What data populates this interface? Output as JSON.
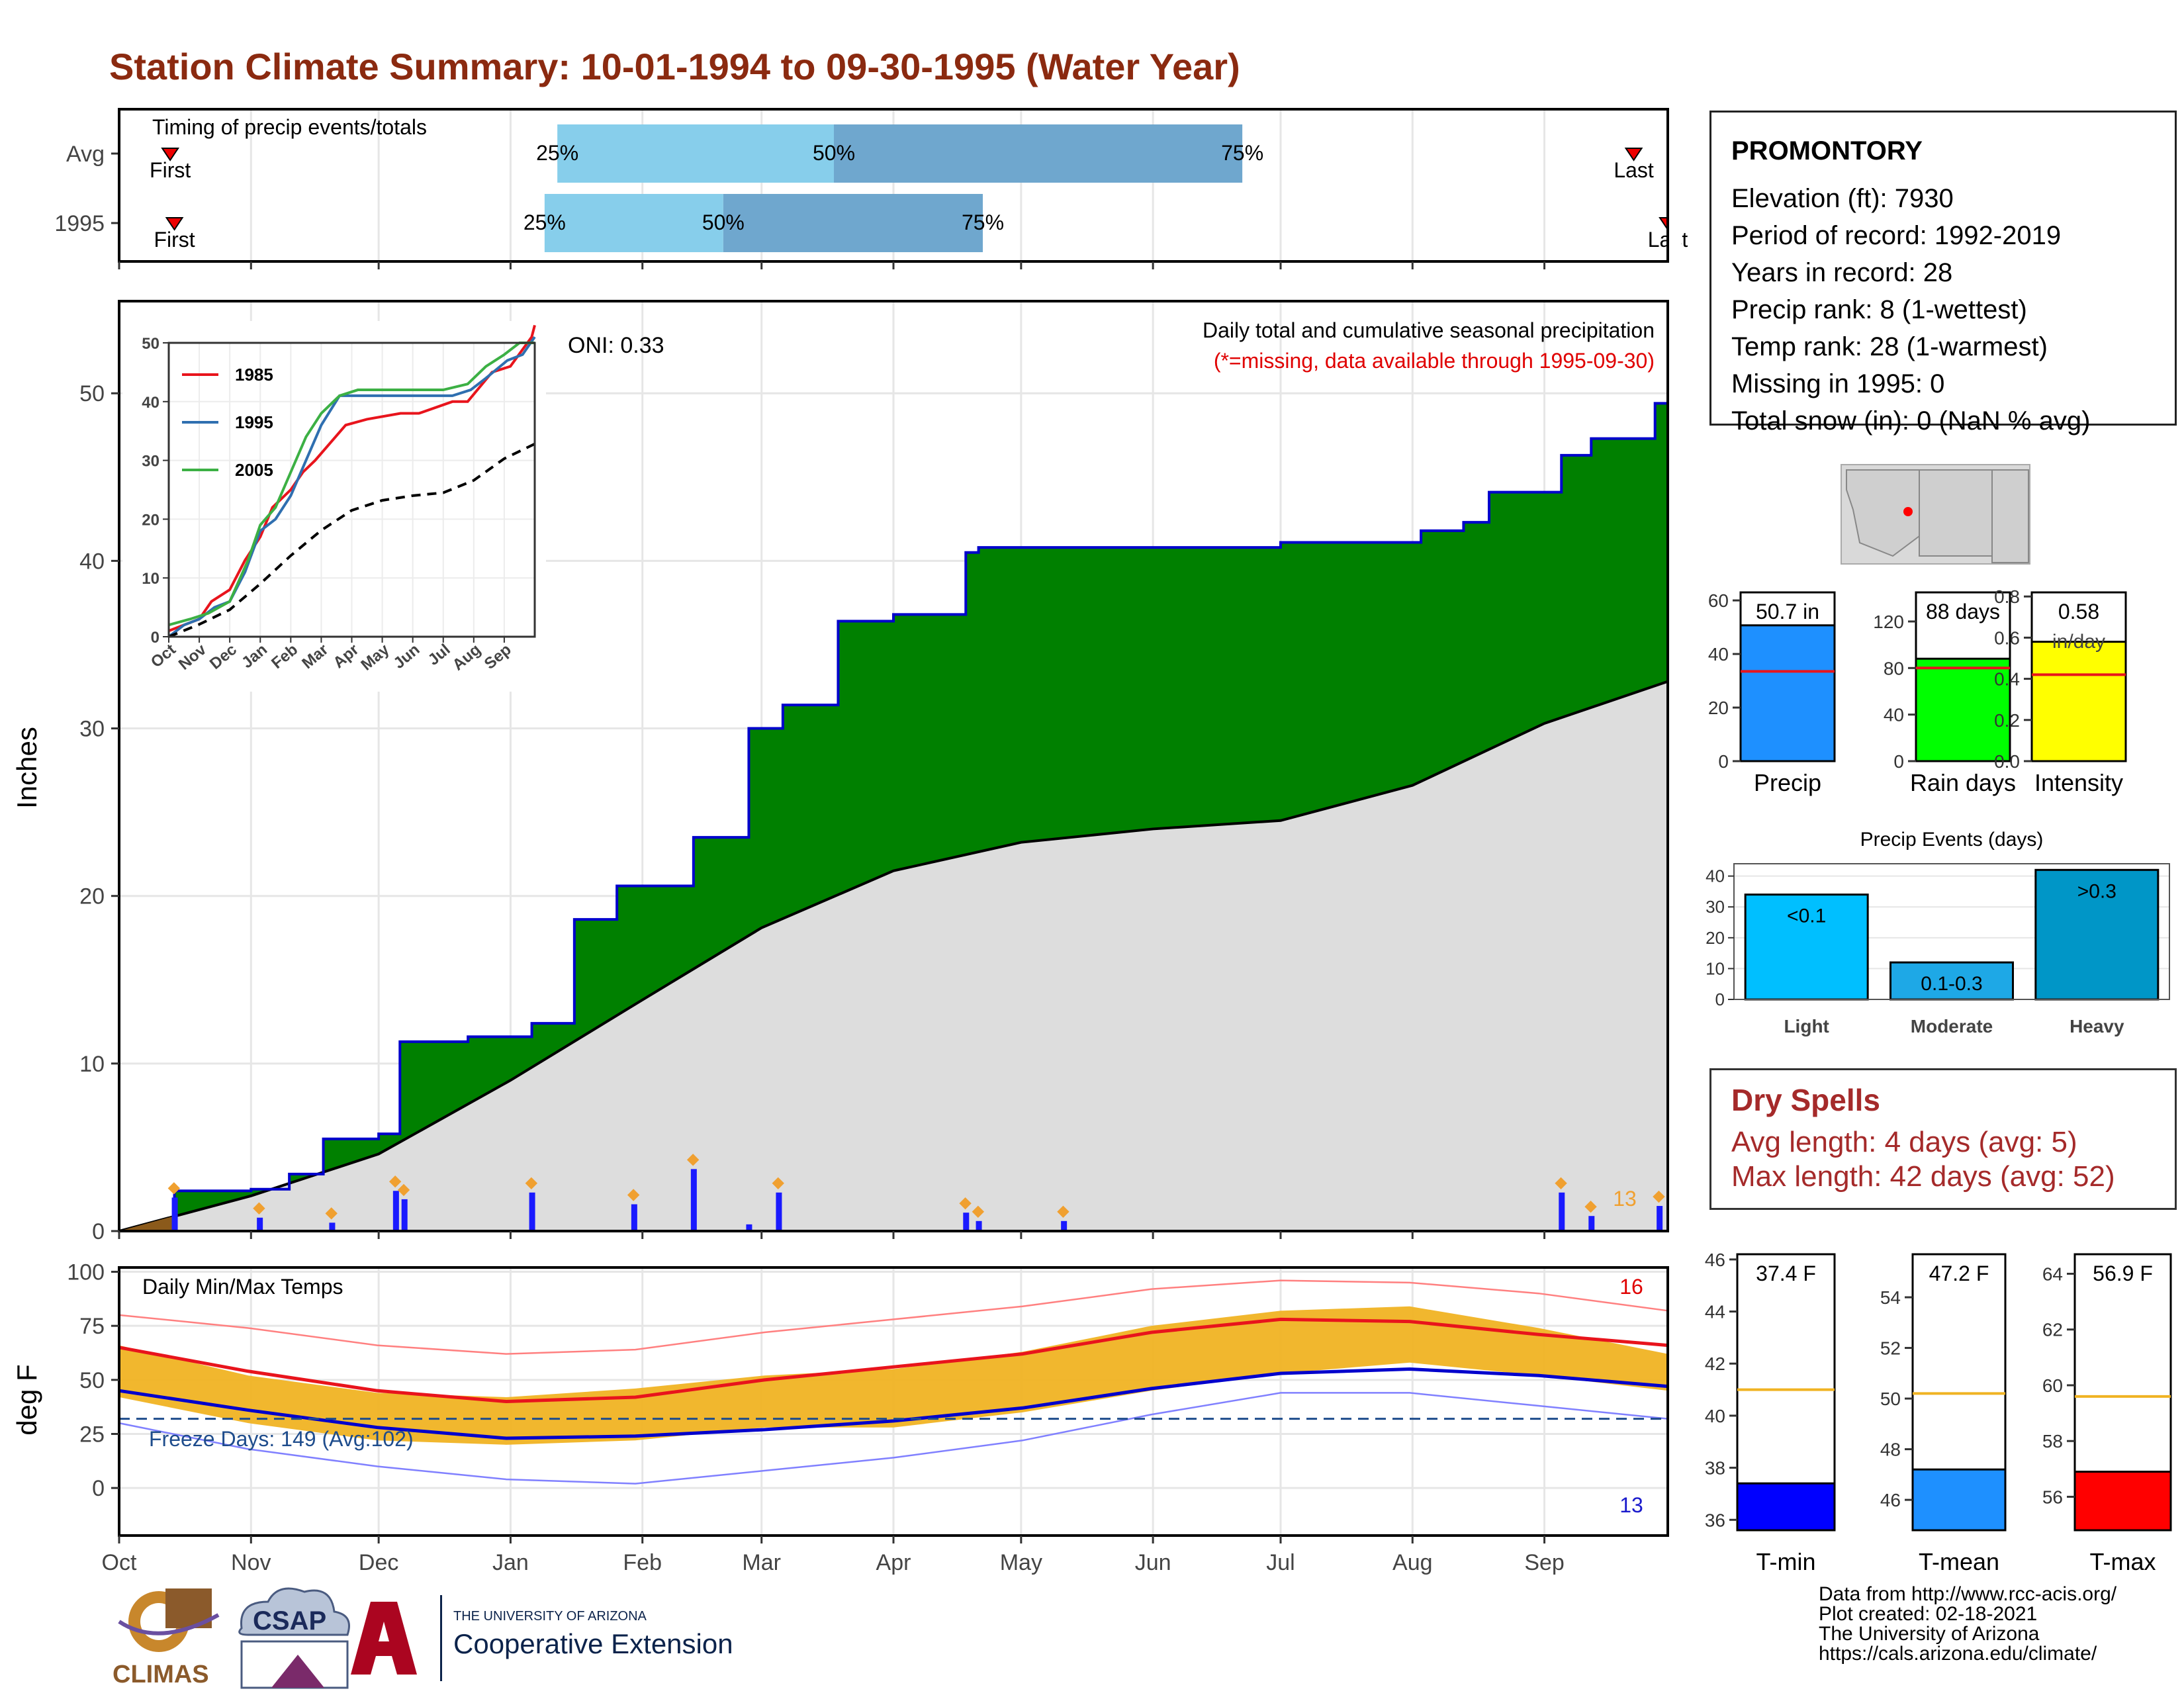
{
  "title": "Station Climate Summary: 10-01-1994 to 09-30-1995 (Water Year)",
  "station": {
    "name": "PROMONTORY",
    "lines": [
      "Elevation (ft): 7930",
      "Period of record: 1992-2019",
      "Years in record: 28",
      "Precip rank: 8 (1-wettest)",
      "Temp rank: 28 (1-warmest)",
      "Missing in 1995: 0",
      "Total snow (in): 0 (NaN % avg)"
    ]
  },
  "dry_spells": {
    "title": "Dry Spells",
    "avg": "Avg length: 4 days (avg: 5)",
    "max": "Max length: 42 days (avg: 52)"
  },
  "credits": [
    "Data from http://www.rcc-acis.org/",
    "Plot created: 02-18-2021",
    "The University of Arizona",
    "https://cals.arizona.edu/climate/"
  ],
  "logos": {
    "climas": "CLIMAS",
    "csap": "CSAP",
    "ua_small": "THE UNIVERSITY OF ARIZONA",
    "ua_big": "Cooperative Extension"
  },
  "colors": {
    "title": "#8b2a10",
    "green": "#008000",
    "blue_line": "#0000cc",
    "grey_fill": "#dddddd",
    "orange": "#f0b323",
    "red": "#e8141c",
    "light_blue": "#87ceeb",
    "mid_blue": "#6fa7ce"
  },
  "chart_data": [
    {
      "id": "timing",
      "type": "bar",
      "title": "Timing of precip events/totals",
      "categories": [
        "Avg",
        "1995"
      ],
      "marker_label_first": "First",
      "marker_label_last": "Last",
      "percent_labels": [
        "25%",
        "50%",
        "75%"
      ],
      "rows": [
        {
          "label": "Avg",
          "first": "1994-10-13",
          "p25": "1995-01-12",
          "p50": "1995-03-18",
          "p75": "1995-06-22",
          "last": "1995-09-22"
        },
        {
          "label": "1995",
          "first": "1994-10-14",
          "p25": "1995-01-09",
          "p50": "1995-02-20",
          "p75": "1995-04-22",
          "last": "1995-09-30"
        }
      ]
    },
    {
      "id": "precip-main",
      "type": "area",
      "title": "Daily total and cumulative seasonal precipitation",
      "subtitle": "(*=missing, data available through 1995-09-30)",
      "ylabel": "Inches",
      "ylim": [
        0,
        55
      ],
      "yticks": [
        0,
        10,
        20,
        30,
        40,
        50
      ],
      "xticks": [
        "Oct",
        "Nov",
        "Dec",
        "Jan",
        "Feb",
        "Mar",
        "Apr",
        "May",
        "Jun",
        "Jul",
        "Aug",
        "Sep"
      ],
      "oni": "ONI: 0.33",
      "corner_count": "13",
      "series": [
        {
          "name": "cumulative 1995",
          "x": [
            "1994-10-01",
            "1994-10-14",
            "1994-11-01",
            "1994-11-10",
            "1994-11-18",
            "1994-12-01",
            "1994-12-06",
            "1994-12-22",
            "1995-01-06",
            "1995-01-16",
            "1995-01-26",
            "1995-02-13",
            "1995-02-26",
            "1995-03-06",
            "1995-03-19",
            "1995-04-01",
            "1995-04-18",
            "1995-04-21",
            "1995-07-01",
            "1995-08-03",
            "1995-08-13",
            "1995-08-19",
            "1995-09-05",
            "1995-09-12",
            "1995-09-27",
            "1995-09-30"
          ],
          "values": [
            0,
            2.4,
            2.5,
            3.4,
            5.5,
            5.8,
            11.3,
            11.6,
            12.4,
            18.6,
            20.6,
            23.5,
            30.0,
            31.4,
            36.4,
            36.8,
            40.5,
            40.8,
            41.1,
            41.8,
            42.3,
            44.1,
            46.3,
            47.3,
            49.4,
            50.7
          ]
        },
        {
          "name": "cumulative average",
          "x": [
            "1994-10-01",
            "1994-11-01",
            "1994-12-01",
            "1995-01-01",
            "1995-02-01",
            "1995-03-01",
            "1995-04-01",
            "1995-05-01",
            "1995-06-01",
            "1995-07-01",
            "1995-08-01",
            "1995-09-01",
            "1995-09-30"
          ],
          "values": [
            0,
            2.1,
            4.6,
            9.0,
            13.8,
            18.1,
            21.5,
            23.2,
            24.0,
            24.5,
            26.6,
            30.3,
            32.8
          ]
        }
      ],
      "daily_events": [
        {
          "date": "1994-10-14",
          "in": 2.0
        },
        {
          "date": "1994-11-03",
          "in": 0.8
        },
        {
          "date": "1994-11-20",
          "in": 0.5
        },
        {
          "date": "1994-12-05",
          "in": 2.4
        },
        {
          "date": "1994-12-07",
          "in": 1.9
        },
        {
          "date": "1995-01-06",
          "in": 2.3
        },
        {
          "date": "1995-01-30",
          "in": 1.6
        },
        {
          "date": "1995-02-13",
          "in": 3.7
        },
        {
          "date": "1995-02-26",
          "in": 0.4
        },
        {
          "date": "1995-03-05",
          "in": 2.3
        },
        {
          "date": "1995-04-18",
          "in": 1.1
        },
        {
          "date": "1995-04-21",
          "in": 0.6
        },
        {
          "date": "1995-05-11",
          "in": 0.6
        },
        {
          "date": "1995-09-05",
          "in": 2.3
        },
        {
          "date": "1995-09-12",
          "in": 0.9
        },
        {
          "date": "1995-09-28",
          "in": 1.5
        }
      ]
    },
    {
      "id": "inset-cumulative",
      "type": "line",
      "ylim": [
        0,
        50
      ],
      "yticks": [
        0,
        10,
        20,
        30,
        40,
        50
      ],
      "xticks": [
        "Oct",
        "Nov",
        "Dec",
        "Jan",
        "Feb",
        "Mar",
        "Apr",
        "May",
        "Jun",
        "Jul",
        "Aug",
        "Sep"
      ],
      "series": [
        {
          "name": "1985",
          "color": "#e8141c",
          "x": [
            0,
            1,
            1.4,
            2,
            2.5,
            3,
            3.4,
            4,
            4.4,
            4.8,
            5.3,
            5.8,
            6.5,
            7.6,
            8.2,
            9.3,
            9.8,
            10.6,
            11.2,
            11.9,
            12
          ],
          "values": [
            1,
            3,
            6,
            8,
            13,
            17,
            22,
            25,
            28,
            30,
            33,
            36,
            37,
            38,
            38,
            40,
            40,
            45,
            46,
            51,
            53
          ]
        },
        {
          "name": "1995",
          "color": "#2f6fb0",
          "x": [
            0,
            0.5,
            1,
            1.5,
            2,
            2.5,
            3,
            3.5,
            4,
            4.5,
            5,
            5.6,
            6.5,
            7.5,
            8.4,
            9.3,
            9.9,
            10.4,
            11.1,
            11.6,
            12
          ],
          "values": [
            0,
            2,
            3,
            5,
            6,
            11,
            18,
            20,
            24,
            30,
            36,
            41,
            41,
            41,
            41,
            41,
            42,
            44,
            47,
            48,
            51
          ]
        },
        {
          "name": "2005",
          "color": "#3cb044",
          "x": [
            0,
            0.7,
            1.3,
            2,
            2.6,
            3,
            3.5,
            4,
            4.5,
            5,
            5.6,
            6.2,
            7,
            8,
            9,
            9.8,
            10.4,
            11,
            11.5,
            12
          ],
          "values": [
            2,
            3,
            4,
            6,
            13,
            19,
            22,
            28,
            34,
            38,
            41,
            42,
            42,
            42,
            42,
            43,
            46,
            48,
            50,
            50
          ]
        },
        {
          "name": "average",
          "color": "#000000",
          "dash": true,
          "x": [
            0,
            1,
            2,
            3,
            4,
            5,
            6,
            7,
            8,
            9,
            10,
            11,
            12
          ],
          "values": [
            0,
            2.1,
            4.6,
            9.0,
            13.8,
            18.1,
            21.5,
            23.2,
            24.0,
            24.5,
            26.6,
            30.3,
            32.8
          ]
        }
      ]
    },
    {
      "id": "season-bars",
      "type": "bar",
      "panels": [
        {
          "name": "Precip",
          "value": 50.7,
          "label": "50.7 in",
          "avg": 33.5,
          "ylim": [
            0,
            63
          ],
          "yticks": [
            0,
            20,
            40,
            60
          ],
          "color": "#1e90ff"
        },
        {
          "name": "Rain days",
          "value": 88,
          "label": "88 days",
          "avg": 80,
          "ylim": [
            0,
            145
          ],
          "yticks": [
            0,
            40,
            80,
            120
          ],
          "color": "#00ff00"
        },
        {
          "name": "Intensity",
          "value": 0.58,
          "label": "0.58",
          "unit": "in/day",
          "avg": 0.42,
          "ylim": [
            0,
            0.82
          ],
          "yticks": [
            "0.0",
            "0.2",
            "0.4",
            "0.6",
            "0.8"
          ],
          "color": "#ffff00"
        }
      ]
    },
    {
      "id": "precip-events",
      "type": "bar",
      "title": "Precip Events (days)",
      "categories": [
        "Light",
        "Moderate",
        "Heavy"
      ],
      "values": [
        34,
        12,
        42
      ],
      "bar_labels": [
        "<0.1",
        "0.1-0.3",
        ">0.3"
      ],
      "colors": [
        "#00bfff",
        "#1ea8e6",
        "#0096c7"
      ],
      "ylim": [
        0,
        44
      ],
      "yticks": [
        0,
        10,
        20,
        30,
        40
      ]
    },
    {
      "id": "temps-main",
      "type": "line",
      "title": "Daily Min/Max Temps",
      "ylabel": "deg F",
      "ylim": [
        -20,
        100
      ],
      "yticks": [
        0,
        25,
        50,
        75,
        100
      ],
      "xticks": [
        "Oct",
        "Nov",
        "Dec",
        "Jan",
        "Feb",
        "Mar",
        "Apr",
        "May",
        "Jun",
        "Jul",
        "Aug",
        "Sep"
      ],
      "freeze_label": "Freeze Days: 149 (Avg:102)",
      "freeze_line": 32,
      "count_hot": "16",
      "count_cold": "13",
      "series": [
        {
          "name": "avg max",
          "color": "#e8141c",
          "x": [
            0,
            1,
            2,
            3,
            4,
            5,
            6,
            7,
            8,
            9,
            10,
            11,
            12
          ],
          "values": [
            65,
            54,
            45,
            40,
            42,
            50,
            56,
            62,
            72,
            78,
            77,
            71,
            66
          ]
        },
        {
          "name": "avg min",
          "color": "#0000cc",
          "x": [
            0,
            1,
            2,
            3,
            4,
            5,
            6,
            7,
            8,
            9,
            10,
            11,
            12
          ],
          "values": [
            45,
            36,
            28,
            23,
            24,
            27,
            31,
            37,
            46,
            53,
            55,
            52,
            47
          ]
        },
        {
          "name": "record max",
          "color": "#ff8080",
          "x": [
            0,
            1,
            2,
            3,
            4,
            5,
            6,
            7,
            8,
            9,
            10,
            11,
            12
          ],
          "values": [
            80,
            74,
            66,
            62,
            64,
            72,
            78,
            84,
            92,
            96,
            95,
            90,
            82
          ]
        },
        {
          "name": "record min",
          "color": "#8080ff",
          "x": [
            0,
            1,
            2,
            3,
            4,
            5,
            6,
            7,
            8,
            9,
            10,
            11,
            12
          ],
          "values": [
            30,
            18,
            10,
            4,
            2,
            8,
            14,
            22,
            34,
            44,
            44,
            38,
            32
          ]
        },
        {
          "name": "1995 max",
          "x": [
            0,
            1,
            2,
            3,
            4,
            5,
            6,
            7,
            8,
            9,
            10,
            11,
            12
          ],
          "values": [
            66,
            52,
            44,
            42,
            46,
            52,
            55,
            63,
            75,
            82,
            84,
            74,
            62
          ]
        },
        {
          "name": "1995 min",
          "x": [
            0,
            1,
            2,
            3,
            4,
            5,
            6,
            7,
            8,
            9,
            10,
            11,
            12
          ],
          "values": [
            42,
            30,
            22,
            20,
            22,
            28,
            28,
            35,
            45,
            53,
            58,
            52,
            45
          ]
        }
      ]
    },
    {
      "id": "temp-bars",
      "type": "bar",
      "panels": [
        {
          "name": "T-min",
          "value": 37.4,
          "label": "37.4 F",
          "avg": 41.0,
          "ylim": [
            35.6,
            46.2
          ],
          "yticks": [
            36,
            38,
            40,
            42,
            44,
            46
          ],
          "color": "#0000ff"
        },
        {
          "name": "T-mean",
          "value": 47.2,
          "label": "47.2 F",
          "avg": 50.2,
          "ylim": [
            44.8,
            55.7
          ],
          "yticks": [
            46,
            48,
            50,
            52,
            54
          ],
          "color": "#1e90ff"
        },
        {
          "name": "T-max",
          "value": 56.9,
          "label": "56.9 F",
          "avg": 59.6,
          "ylim": [
            54.8,
            64.7
          ],
          "yticks": [
            56,
            58,
            60,
            62,
            64
          ],
          "color": "#ff0000"
        }
      ]
    }
  ]
}
